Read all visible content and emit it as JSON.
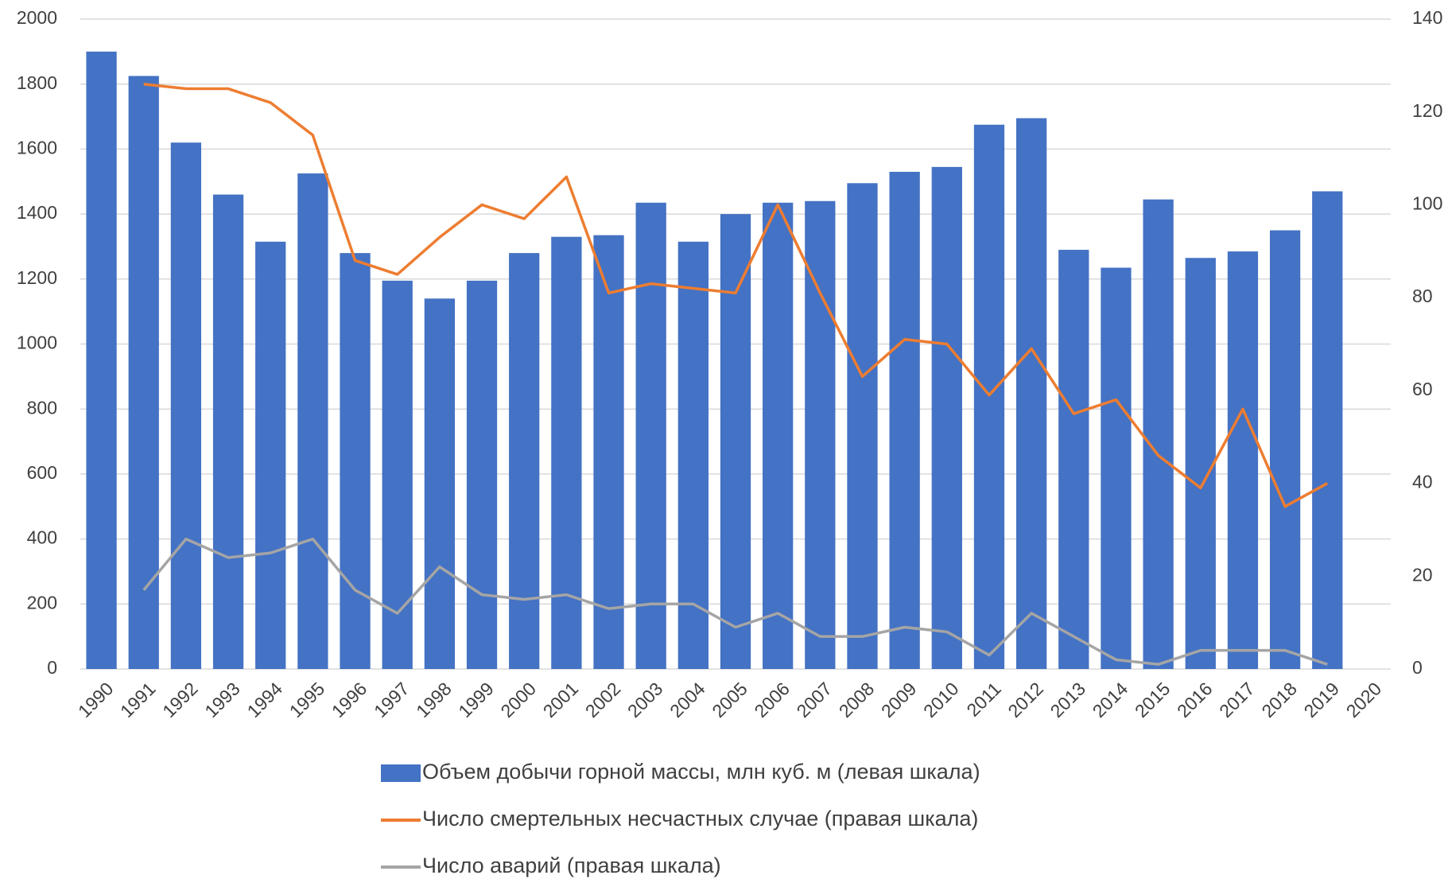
{
  "chart_data": {
    "type": "bar_line",
    "categories": [
      "1990",
      "1991",
      "1992",
      "1993",
      "1994",
      "1995",
      "1996",
      "1997",
      "1998",
      "1999",
      "2000",
      "2001",
      "2002",
      "2003",
      "2004",
      "2005",
      "2006",
      "2007",
      "2008",
      "2009",
      "2010",
      "2011",
      "2012",
      "2013",
      "2014",
      "2015",
      "2016",
      "2017",
      "2018",
      "2019",
      "2020"
    ],
    "series": [
      {
        "name": "Объем добычи горной массы, млн куб. м (левая шкала)",
        "color": "#4472c4",
        "type": "bar",
        "values": [
          1900,
          1825,
          1620,
          1460,
          1315,
          1525,
          1280,
          1195,
          1140,
          1195,
          1280,
          1330,
          1335,
          1435,
          1315,
          1400,
          1435,
          1440,
          1495,
          1530,
          1545,
          1675,
          1695,
          1290,
          1235,
          1445,
          1265,
          1285,
          1350,
          1470,
          null
        ]
      },
      {
        "name": "Число смертельных несчастных случае (правая шкала)",
        "color": "#ed7d31",
        "type": "line",
        "axis": "y2",
        "values": [
          null,
          126,
          125,
          125,
          122,
          115,
          88,
          85,
          93,
          100,
          97,
          106,
          81,
          83,
          82,
          81,
          100,
          81,
          63,
          71,
          70,
          59,
          69,
          55,
          58,
          46,
          39,
          56,
          35,
          40,
          null
        ]
      },
      {
        "name": "Число аварий (правая шкала)",
        "color": "#a5a5a5",
        "type": "line",
        "axis": "y2",
        "values": [
          null,
          17,
          28,
          24,
          25,
          28,
          17,
          12,
          22,
          16,
          15,
          16,
          13,
          14,
          14,
          9,
          12,
          7,
          7,
          9,
          8,
          3,
          12,
          7,
          2,
          1,
          4,
          4,
          4,
          1,
          null
        ]
      }
    ],
    "ylim": [
      0,
      2000
    ],
    "yticks": [
      0,
      200,
      400,
      600,
      800,
      1000,
      1200,
      1400,
      1600,
      1800,
      2000
    ],
    "y2lim": [
      0,
      140
    ],
    "y2ticks": [
      0,
      20,
      40,
      60,
      80,
      100,
      120,
      140
    ],
    "grid": true,
    "legend": "bottom"
  }
}
